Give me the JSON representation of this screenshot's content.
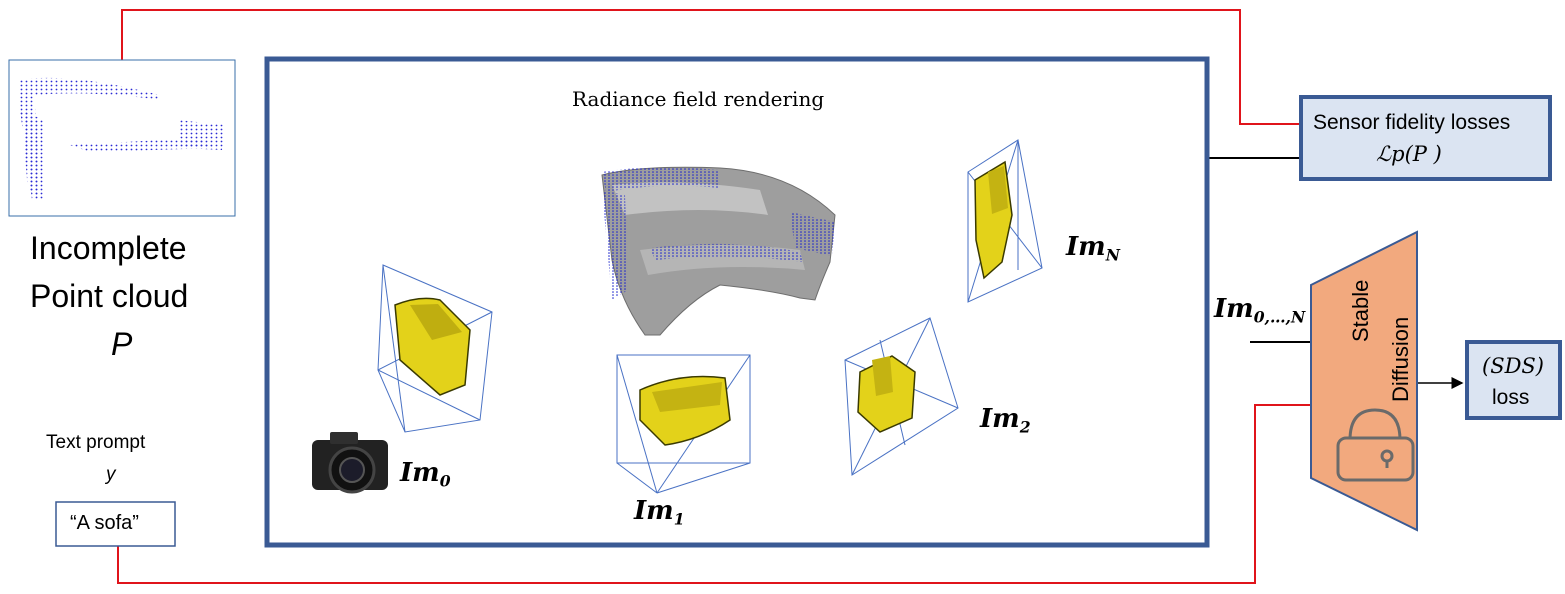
{
  "input": {
    "title_line1": "Incomplete",
    "title_line2": "Point cloud",
    "symbol": "P",
    "prompt_label": "Text prompt",
    "prompt_symbol": "y",
    "prompt_text": "“A sofa”"
  },
  "render_panel": {
    "title": "Radiance field rendering"
  },
  "views": [
    {
      "base": "Im",
      "sub": "0"
    },
    {
      "base": "Im",
      "sub": "1"
    },
    {
      "base": "Im",
      "sub": "2"
    },
    {
      "base": "Im",
      "sub": "N"
    }
  ],
  "all_views": {
    "base": "Im",
    "sub": "0,…,N"
  },
  "sensor_box": {
    "label": "Sensor fidelity losses",
    "formula": "ℒp(P )"
  },
  "diffusion": {
    "line1": "Stable",
    "line2": "Diffusion"
  },
  "sds_box": {
    "line1": "(SDS)",
    "line2": "loss"
  },
  "colors": {
    "frame_blue": "#3a5a94",
    "box_fill": "#dbe4f2",
    "diffusion_fill": "#f2a97e",
    "red_line": "#e0141b",
    "sofa_yellow": "#e3d21a",
    "points_blue": "#1a22cc"
  }
}
